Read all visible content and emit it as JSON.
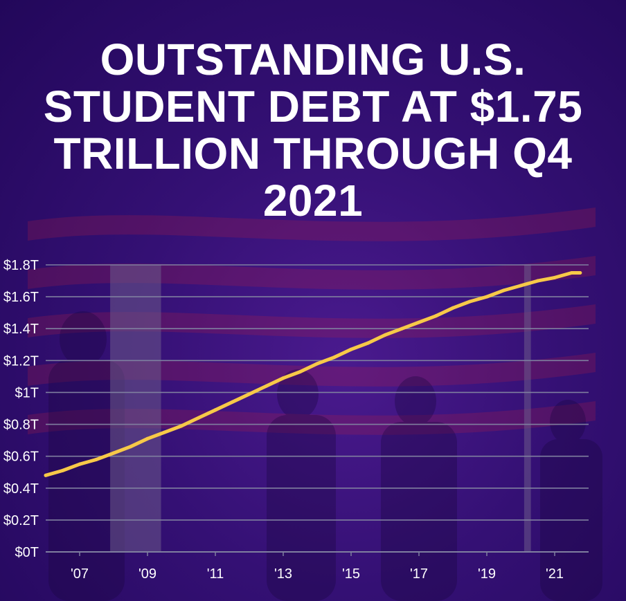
{
  "chart_data": {
    "type": "line",
    "title": "OUTSTANDING U.S. STUDENT DEBT AT $1.75 TRILLION THROUGH Q4 2021",
    "xlabel": "",
    "ylabel": "",
    "y_ticks": [
      "$0T",
      "$0.2T",
      "$0.4T",
      "$0.6T",
      "$0.8T",
      "$1T",
      "$1.2T",
      "$1.4T",
      "$1.6T",
      "$1.8T"
    ],
    "x_ticks": [
      "'07",
      "'09",
      "'11",
      "'13",
      "'15",
      "'17",
      "'19",
      "'21"
    ],
    "x_tick_years": [
      2007,
      2009,
      2011,
      2013,
      2015,
      2017,
      2019,
      2021
    ],
    "ylim": [
      0,
      1.8
    ],
    "xlim": [
      2006.0,
      2022.0
    ],
    "grid": true,
    "recession_shading": [
      [
        2007.9,
        2009.4
      ],
      [
        2020.1,
        2020.3
      ]
    ],
    "series": [
      {
        "x": [
          2006.0,
          2006.5,
          2007.0,
          2007.5,
          2008.0,
          2008.5,
          2009.0,
          2009.5,
          2010.0,
          2010.5,
          2011.0,
          2011.5,
          2012.0,
          2012.5,
          2013.0,
          2013.5,
          2014.0,
          2014.5,
          2015.0,
          2015.5,
          2016.0,
          2016.5,
          2017.0,
          2017.5,
          2018.0,
          2018.5,
          2019.0,
          2019.5,
          2020.0,
          2020.5,
          2021.0,
          2021.5,
          2021.75
        ],
        "values": [
          0.48,
          0.51,
          0.55,
          0.58,
          0.62,
          0.66,
          0.71,
          0.75,
          0.79,
          0.84,
          0.89,
          0.94,
          0.99,
          1.04,
          1.09,
          1.13,
          1.18,
          1.22,
          1.27,
          1.31,
          1.36,
          1.4,
          1.44,
          1.48,
          1.53,
          1.57,
          1.6,
          1.64,
          1.67,
          1.7,
          1.72,
          1.75,
          1.75
        ]
      }
    ],
    "colors": {
      "line": "#f7c948",
      "gridline": "#7f7f9f",
      "recession": "#6b5a8a"
    }
  }
}
